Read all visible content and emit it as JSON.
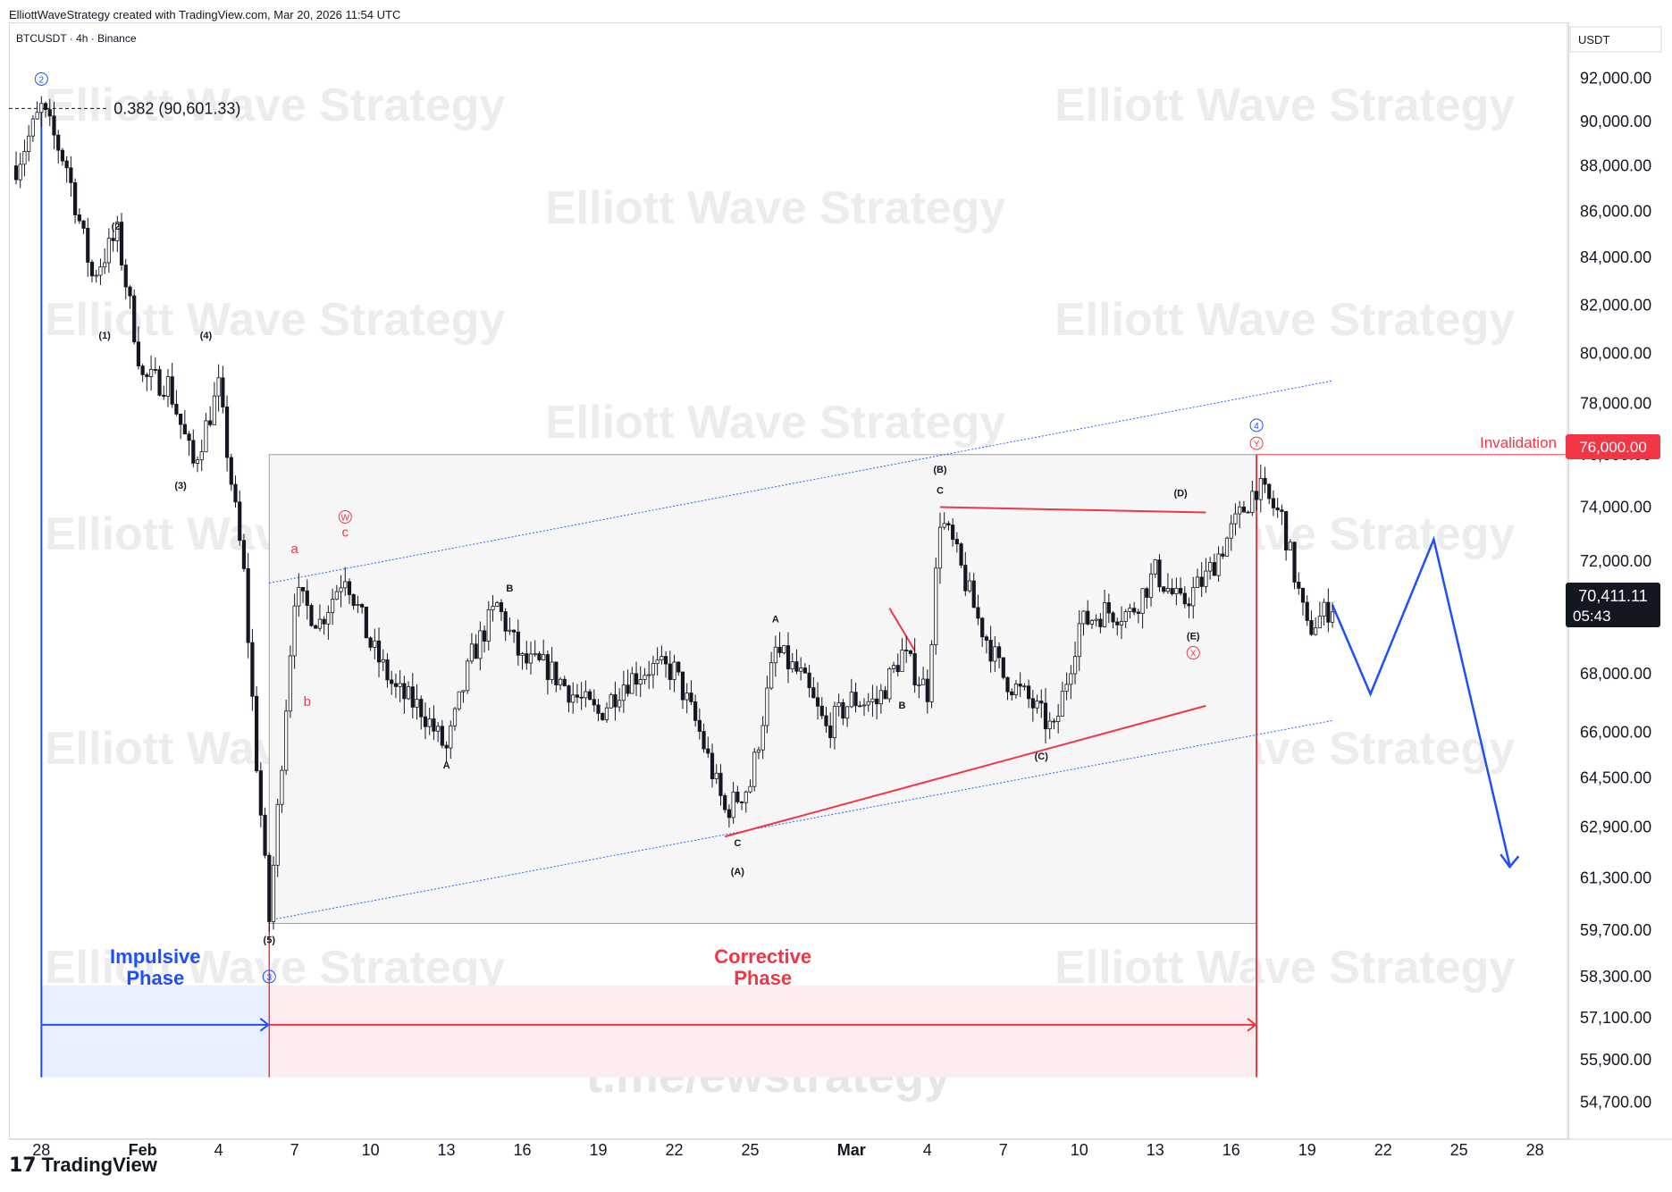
{
  "header": {
    "credit": "ElliottWaveStrategy created with TradingView.com, Mar 20, 2026 11:54 UTC",
    "symbol": "BTCUSDT · 4h · Binance",
    "currency": "USDT",
    "brand": "TradingView",
    "brand_mark": "17"
  },
  "watermark": {
    "text": "Elliott Wave Strategy",
    "link": "t.me/ewstrategy"
  },
  "price_box": {
    "last_price": "70,411.11",
    "countdown": "05:43",
    "invalidation_price": "76,000.00"
  },
  "colors": {
    "bull": "#26a69a",
    "bear": "#131722",
    "invalidation": "#f23645",
    "impulse": "#1e4fff",
    "corrective": "#f23645",
    "channel": "#2962ff",
    "last_price_bg": "#131722"
  },
  "chart_data": {
    "type": "candlestick",
    "symbol": "BTCUSDT",
    "interval": "4h",
    "exchange": "Binance",
    "y_tick_labels": [
      "92,000.00",
      "90,000.00",
      "88,000.00",
      "86,000.00",
      "84,000.00",
      "82,000.00",
      "80,000.00",
      "78,000.00",
      "76,000.00",
      "74,000.00",
      "72,000.00",
      "70,411.11",
      "68,000.00",
      "66,000.00",
      "64,500.00",
      "62,900.00",
      "61,300.00",
      "59,700.00",
      "58,300.00",
      "57,100.00",
      "55,900.00",
      "54,700.00"
    ],
    "y_ticks": [
      92000,
      90000,
      88000,
      86000,
      84000,
      82000,
      80000,
      78000,
      76000,
      74000,
      72000,
      68000,
      66000,
      64500,
      62900,
      61300,
      59700,
      58300,
      57100,
      55900,
      54700
    ],
    "ylim": [
      54000,
      93500
    ],
    "y_scale": "log",
    "x_tick_labels": [
      "28",
      "Feb",
      "4",
      "7",
      "10",
      "13",
      "16",
      "19",
      "22",
      "25",
      "Mar",
      "4",
      "7",
      "10",
      "13",
      "16",
      "19",
      "22",
      "25",
      "28"
    ],
    "x_ticks": [
      "Jan 28",
      "Feb 1",
      "Feb 4",
      "Feb 7",
      "Feb 10",
      "Feb 13",
      "Feb 16",
      "Feb 19",
      "Feb 22",
      "Feb 25",
      "Mar 1",
      "Mar 4",
      "Mar 7",
      "Mar 10",
      "Mar 13",
      "Mar 16",
      "Mar 19",
      "Mar 22",
      "Mar 25",
      "Mar 28"
    ],
    "xlim": [
      "Jan 27",
      "Mar 29"
    ],
    "price_path": [
      {
        "t": "Jan 27",
        "p": 88000
      },
      {
        "t": "Jan 28",
        "p": 90600
      },
      {
        "t": "Jan 29",
        "p": 88000
      },
      {
        "t": "Jan 30",
        "p": 83200
      },
      {
        "t": "Jan 31",
        "p": 85000
      },
      {
        "t": "Feb 1",
        "p": 79000
      },
      {
        "t": "Feb 2",
        "p": 78800
      },
      {
        "t": "Feb 3",
        "p": 75600
      },
      {
        "t": "Feb 4",
        "p": 78600
      },
      {
        "t": "Feb 5",
        "p": 71500
      },
      {
        "t": "Feb 5 12h",
        "p": 65000
      },
      {
        "t": "Feb 6",
        "p": 60000
      },
      {
        "t": "Feb 7",
        "p": 70800
      },
      {
        "t": "Feb 8",
        "p": 69800
      },
      {
        "t": "Feb 9",
        "p": 71600
      },
      {
        "t": "Feb 10",
        "p": 69000
      },
      {
        "t": "Feb 11",
        "p": 67400
      },
      {
        "t": "Feb 12",
        "p": 66800
      },
      {
        "t": "Feb 13",
        "p": 65400
      },
      {
        "t": "Feb 14",
        "p": 68600
      },
      {
        "t": "Feb 15",
        "p": 70400
      },
      {
        "t": "Feb 16",
        "p": 68400
      },
      {
        "t": "Feb 17",
        "p": 68200
      },
      {
        "t": "Feb 18",
        "p": 67300
      },
      {
        "t": "Feb 19",
        "p": 66600
      },
      {
        "t": "Feb 20",
        "p": 67700
      },
      {
        "t": "Feb 21",
        "p": 68200
      },
      {
        "t": "Feb 22",
        "p": 68100
      },
      {
        "t": "Feb 23",
        "p": 66000
      },
      {
        "t": "Feb 24",
        "p": 63400
      },
      {
        "t": "Feb 25",
        "p": 64300
      },
      {
        "t": "Feb 26",
        "p": 68800
      },
      {
        "t": "Feb 27",
        "p": 67900
      },
      {
        "t": "Feb 28",
        "p": 66100
      },
      {
        "t": "Mar 1",
        "p": 67100
      },
      {
        "t": "Mar 2",
        "p": 67000
      },
      {
        "t": "Mar 3",
        "p": 68700
      },
      {
        "t": "Mar 4",
        "p": 67400
      },
      {
        "t": "Mar 4 12h",
        "p": 73600
      },
      {
        "t": "Mar 5",
        "p": 72600
      },
      {
        "t": "Mar 6",
        "p": 69900
      },
      {
        "t": "Mar 7",
        "p": 67900
      },
      {
        "t": "Mar 8",
        "p": 67100
      },
      {
        "t": "Mar 9",
        "p": 66000
      },
      {
        "t": "Mar 10",
        "p": 69700
      },
      {
        "t": "Mar 11",
        "p": 70200
      },
      {
        "t": "Mar 12",
        "p": 70100
      },
      {
        "t": "Mar 13",
        "p": 71600
      },
      {
        "t": "Mar 14",
        "p": 70400
      },
      {
        "t": "Mar 15",
        "p": 71400
      },
      {
        "t": "Mar 16",
        "p": 73100
      },
      {
        "t": "Mar 17",
        "p": 74800
      },
      {
        "t": "Mar 18",
        "p": 73600
      },
      {
        "t": "Mar 19",
        "p": 69500
      },
      {
        "t": "Mar 20",
        "p": 70411
      }
    ],
    "projection": [
      {
        "t": "Mar 20",
        "p": 70411
      },
      {
        "t": "Mar 21 12h",
        "p": 67300
      },
      {
        "t": "Mar 24",
        "p": 72800
      },
      {
        "t": "Mar 27",
        "p": 61700
      }
    ],
    "channel_upper": [
      {
        "t": "Feb 6",
        "p": 71200
      },
      {
        "t": "Mar 20",
        "p": 78900
      }
    ],
    "channel_lower": [
      {
        "t": "Feb 6",
        "p": 60000
      },
      {
        "t": "Mar 20",
        "p": 66400
      }
    ],
    "triangle_upper": [
      {
        "t": "Mar 4 12h",
        "p": 74000
      },
      {
        "t": "Mar 15",
        "p": 73800
      }
    ],
    "triangle_lower": [
      {
        "t": "Feb 24",
        "p": 62600
      },
      {
        "t": "Mar 15",
        "p": 66900
      }
    ],
    "level_0382": {
      "t0": "Jan 27",
      "t1": "Jan 31",
      "p": 90601.33,
      "label": "0.382 (90,601.33)"
    },
    "invalidation_level": {
      "t0": "Mar 17",
      "p": 76000,
      "label": "Invalidation"
    },
    "phases": [
      {
        "label_line1": "Impulsive",
        "label_line2": "Phase",
        "t0": "Jan 28",
        "t1": "Feb 6"
      },
      {
        "label_line1": "Corrective",
        "label_line2": "Phase",
        "t0": "Feb 6",
        "t1": "Mar 17"
      }
    ],
    "wave_labels": [
      {
        "text": "2",
        "circled": true,
        "color": "blue",
        "t": "Jan 28",
        "p": 91800
      },
      {
        "text": "(1)",
        "t": "Jan 30 12h",
        "p": 80600
      },
      {
        "text": "(2)",
        "t": "Jan 31",
        "p": 85200
      },
      {
        "text": "(3)",
        "t": "Feb 2 12h",
        "p": 74700
      },
      {
        "text": "(4)",
        "t": "Feb 3 12h",
        "p": 80600
      },
      {
        "text": "(5)",
        "t": "Feb 6",
        "p": 59300
      },
      {
        "text": "3",
        "circled": true,
        "color": "blue",
        "t": "Feb 6",
        "p": 58200
      },
      {
        "text": "W",
        "circled": true,
        "color": "red",
        "t": "Feb 9",
        "p": 73500
      },
      {
        "text": "a",
        "color": "red",
        "t": "Feb 7",
        "p": 72300
      },
      {
        "text": "b",
        "color": "red",
        "t": "Feb 7 12h",
        "p": 66900
      },
      {
        "text": "c",
        "color": "red",
        "t": "Feb 9",
        "p": 72900
      },
      {
        "text": "A",
        "t": "Feb 13",
        "p": 64800
      },
      {
        "text": "B",
        "t": "Feb 15 12h",
        "p": 70900
      },
      {
        "text": "C",
        "t": "Feb 24 12h",
        "p": 62300
      },
      {
        "text": "(A)",
        "t": "Feb 24 12h",
        "p": 61400
      },
      {
        "text": "A",
        "t": "Feb 26",
        "p": 69800
      },
      {
        "text": "B",
        "t": "Mar 3",
        "p": 66800
      },
      {
        "text": "C",
        "t": "Mar 4 12h",
        "p": 74500
      },
      {
        "text": "(B)",
        "t": "Mar 4 12h",
        "p": 75300
      },
      {
        "text": "(C)",
        "t": "Mar 8 12h",
        "p": 65100
      },
      {
        "text": "(D)",
        "t": "Mar 14",
        "p": 74400
      },
      {
        "text": "(E)",
        "t": "Mar 14 12h",
        "p": 69200
      },
      {
        "text": "X",
        "circled": true,
        "color": "red",
        "t": "Mar 14 12h",
        "p": 68600
      },
      {
        "text": "4",
        "circled": true,
        "color": "blue",
        "t": "Mar 17",
        "p": 77000
      },
      {
        "text": "Y",
        "circled": true,
        "color": "red",
        "t": "Mar 17",
        "p": 76300
      }
    ]
  }
}
